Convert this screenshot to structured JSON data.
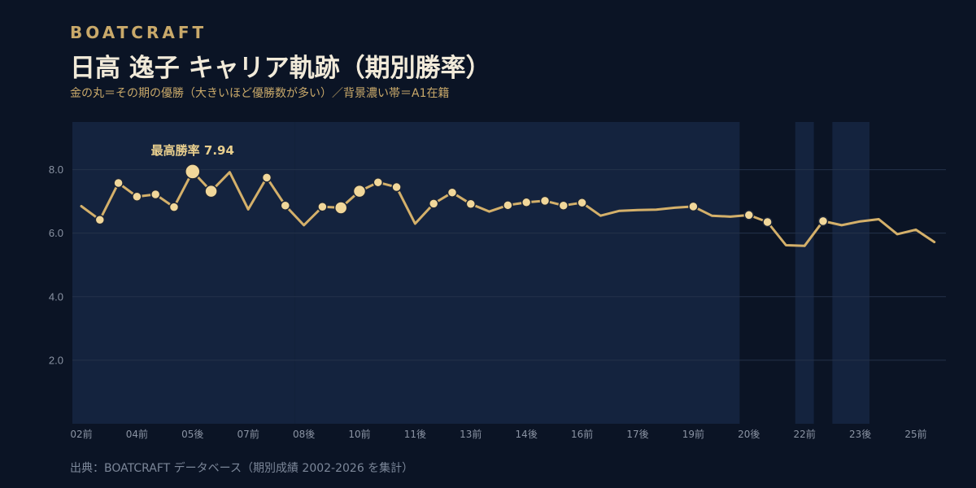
{
  "header": {
    "brand": "BOATCRAFT",
    "title": "日高 逸子 キャリア軌跡（期別勝率）",
    "subtitle": "金の丸＝その期の優勝（大きいほど優勝数が多い）／背景濃い帯＝A1在籍"
  },
  "footer": {
    "source": "出典：BOATCRAFT データベース（期別成績 2002-2026 を集計）"
  },
  "colors": {
    "background": "#0b1425",
    "band": "#14233e",
    "line": "#d4b06a",
    "marker": "#f1d79a",
    "marker_stroke": "#1b2436",
    "grid": "#25324a"
  },
  "chart_data": {
    "type": "line",
    "title": "日高 逸子 キャリア軌跡（期別勝率）",
    "xlabel": "",
    "ylabel": "",
    "ylim": [
      0,
      9.5
    ],
    "y_ticks": [
      "2.0",
      "4.0",
      "6.0",
      "8.0"
    ],
    "y_tick_values": [
      2,
      4,
      6,
      8
    ],
    "grid": true,
    "x_tick_labels": [
      "02前",
      "04前",
      "05後",
      "07前",
      "08後",
      "10前",
      "11後",
      "13前",
      "14後",
      "16前",
      "17後",
      "19前",
      "20後",
      "22前",
      "23後",
      "25前"
    ],
    "x_tick_periods": [
      0,
      3,
      6,
      9,
      12,
      15,
      18,
      21,
      24,
      27,
      30,
      33,
      36,
      39,
      42,
      45
    ],
    "series": [
      {
        "values": [
          6.85,
          6.42,
          7.58,
          7.15,
          7.22,
          6.82,
          7.94,
          7.32,
          7.92,
          6.75,
          7.75,
          6.87,
          6.25,
          6.83,
          6.8,
          7.32,
          7.6,
          7.45,
          6.3,
          6.93,
          7.28,
          6.92,
          6.68,
          6.88,
          6.97,
          7.02,
          6.87,
          6.96,
          6.55,
          6.7,
          6.73,
          6.74,
          6.8,
          6.84,
          6.55,
          6.52,
          6.57,
          6.35,
          5.62,
          5.6,
          6.38,
          6.25,
          6.37,
          6.44,
          5.97,
          6.11,
          5.72
        ],
        "wins": [
          0,
          1,
          1,
          1,
          1,
          1,
          3,
          2,
          0,
          0,
          1,
          1,
          0,
          1,
          2,
          2,
          1,
          1,
          0,
          1,
          1,
          1,
          0,
          1,
          1,
          1,
          1,
          1,
          0,
          0,
          0,
          0,
          0,
          1,
          0,
          0,
          1,
          1,
          0,
          0,
          1,
          0,
          0,
          0,
          0,
          0,
          0
        ]
      }
    ],
    "a1_bands": [
      [
        0,
        11
      ],
      [
        12,
        35
      ],
      [
        39,
        39
      ],
      [
        41,
        42
      ]
    ],
    "annotation": {
      "text": "最高勝率 7.94",
      "value": 7.94,
      "period": 6
    }
  }
}
